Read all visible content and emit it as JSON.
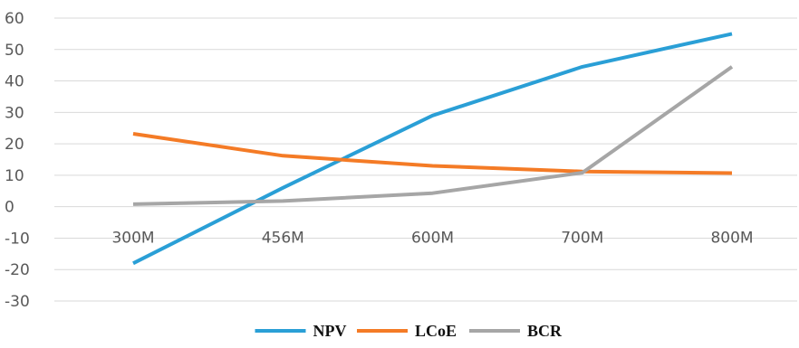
{
  "chart_data": {
    "type": "line",
    "categories": [
      "300M",
      "456M",
      "600M",
      "700M",
      "800M"
    ],
    "y_ticks": [
      "60",
      "50",
      "40",
      "30",
      "20",
      "10",
      "0",
      "-10",
      "-20",
      "-30"
    ],
    "ylim": [
      -30,
      60
    ],
    "grid": true,
    "legend_position": "bottom",
    "series": [
      {
        "name": "NPV",
        "color": "#2a9fd6",
        "values": [
          -18,
          6,
          29,
          44.5,
          55
        ]
      },
      {
        "name": "LCoE",
        "color": "#f47b26",
        "values": [
          23.2,
          16.2,
          13,
          11.2,
          10.7
        ]
      },
      {
        "name": "BCR",
        "color": "#a6a6a6",
        "values": [
          0.8,
          1.8,
          4.3,
          10.8,
          44.5
        ]
      }
    ]
  }
}
